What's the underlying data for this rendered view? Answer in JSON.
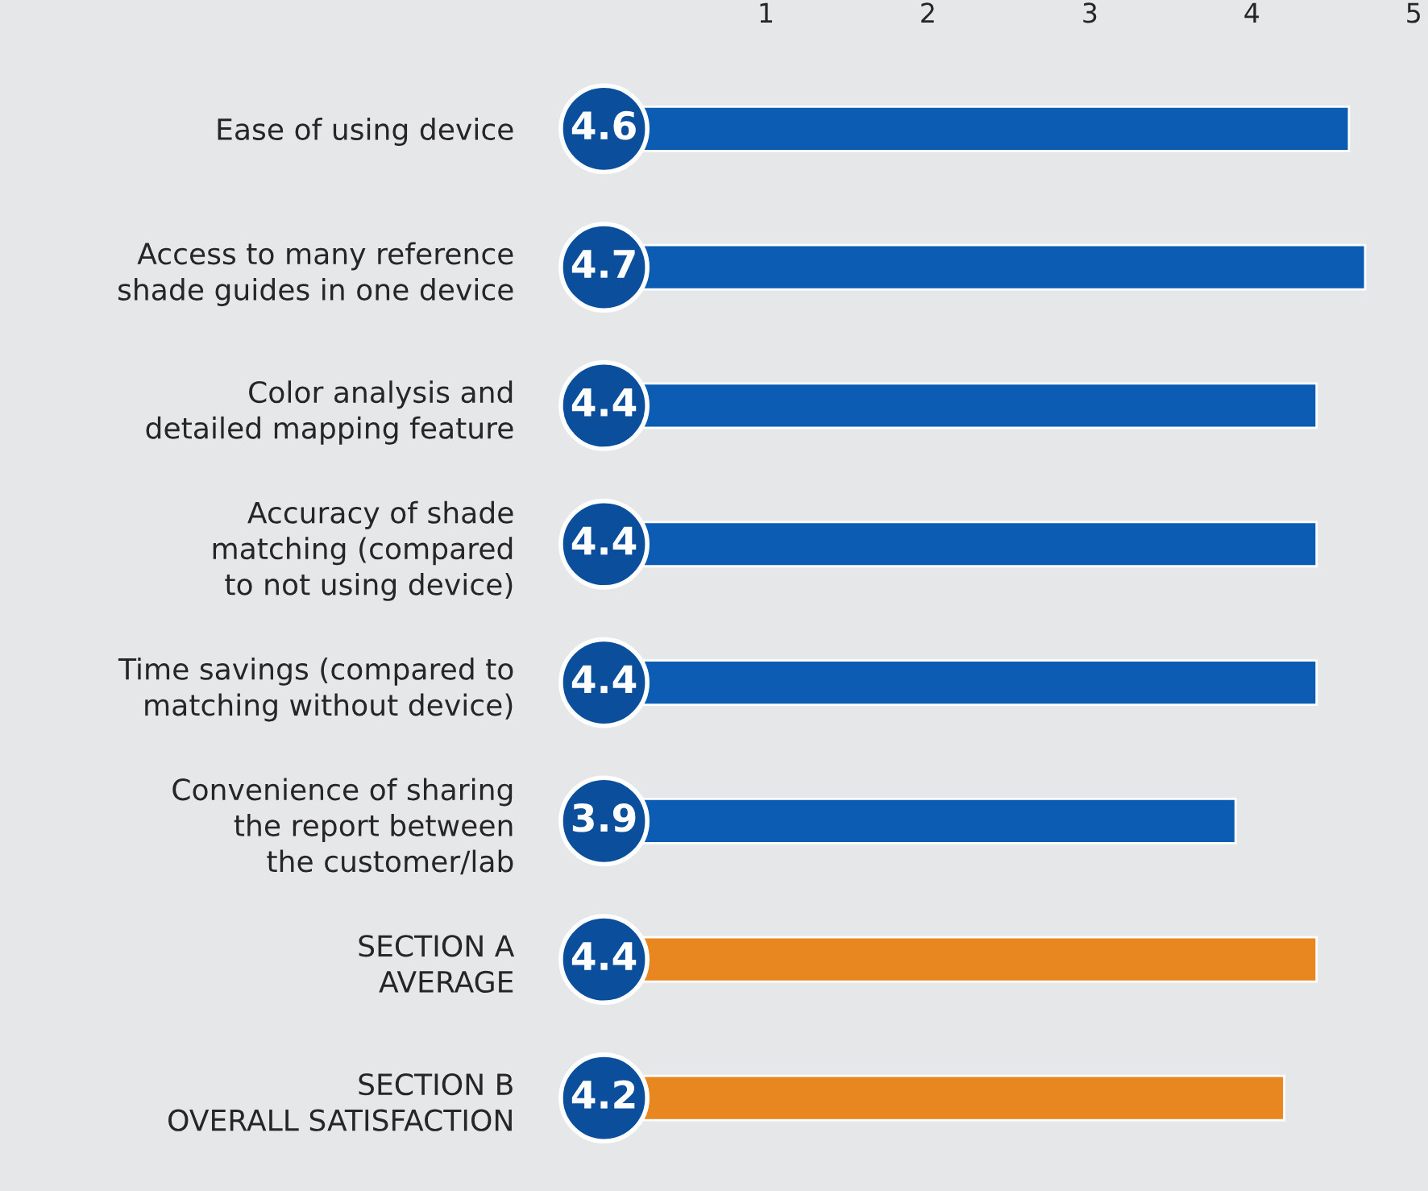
{
  "chart_data": {
    "type": "bar",
    "orientation": "horizontal",
    "categories": [
      "Ease of using device",
      "Access to many reference\nshade guides in one device",
      "Color analysis and\ndetailed mapping feature",
      "Accuracy of shade\nmatching (compared\nto not using device)",
      "Time savings (compared to\nmatching without device)",
      "Convenience of sharing\nthe report between\nthe customer/lab",
      "SECTION A\nAVERAGE",
      "SECTION B\nOVERALL SATISFACTION"
    ],
    "values": [
      4.6,
      4.7,
      4.4,
      4.4,
      4.4,
      3.9,
      4.4,
      4.2
    ],
    "colors": [
      "#0b5cb2",
      "#0b5cb2",
      "#0b5cb2",
      "#0b5cb2",
      "#0b5cb2",
      "#0b5cb2",
      "#e8861f",
      "#e8861f"
    ],
    "data_labels": true,
    "xlim": [
      0,
      5
    ],
    "xticks": [
      1,
      2,
      3,
      4,
      5
    ],
    "grid": false,
    "legend": false
  }
}
